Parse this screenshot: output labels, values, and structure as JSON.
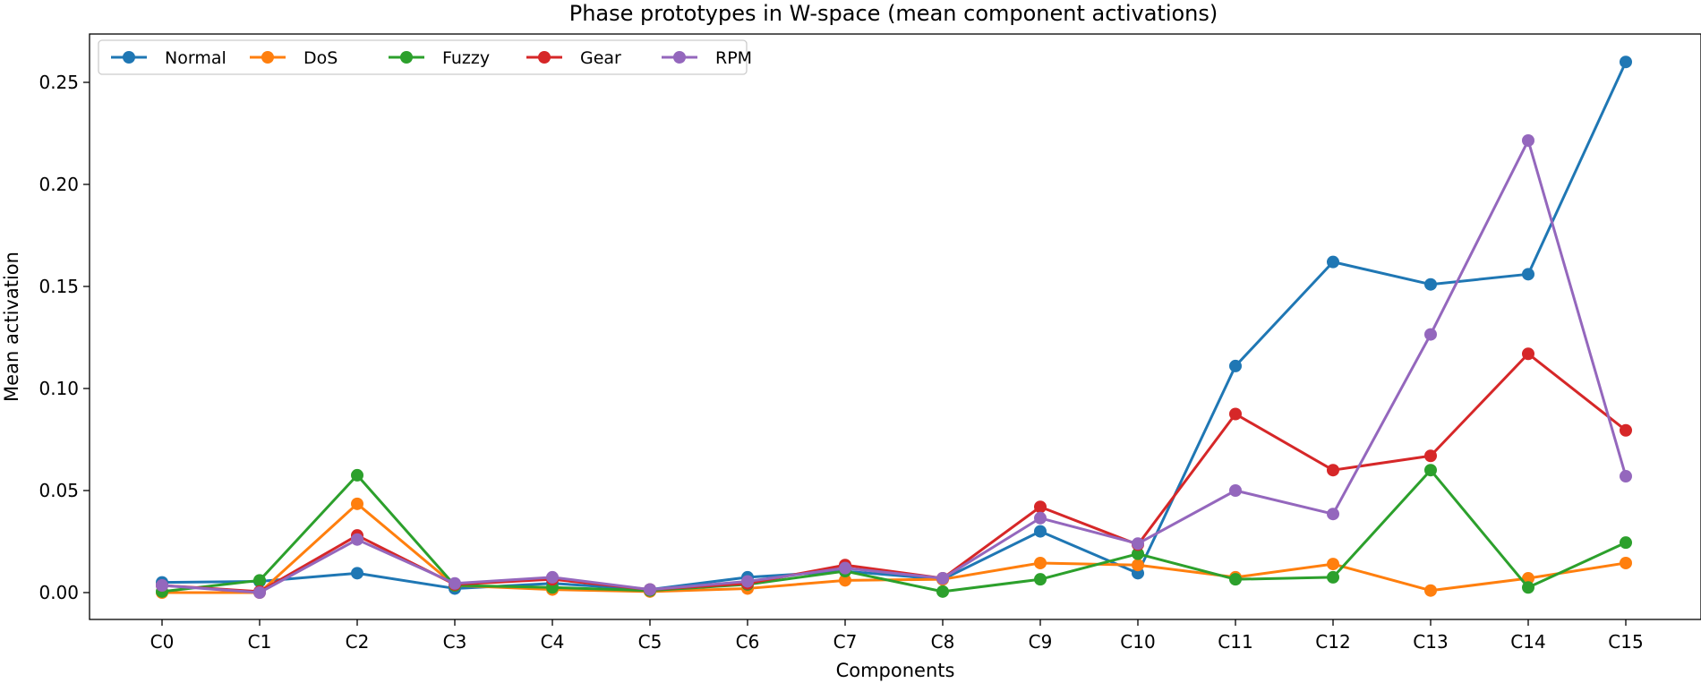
{
  "chart_data": {
    "type": "line",
    "title": "Phase prototypes in W-space (mean component activations)",
    "xlabel": "Components",
    "ylabel": "Mean activation",
    "categories": [
      "C0",
      "C1",
      "C2",
      "C3",
      "C4",
      "C5",
      "C6",
      "C7",
      "C8",
      "C9",
      "C10",
      "C11",
      "C12",
      "C13",
      "C14",
      "C15"
    ],
    "ylim": [
      -0.013,
      0.272
    ],
    "yticks": [
      0.0,
      0.05,
      0.1,
      0.15,
      0.2,
      0.25
    ],
    "ytick_labels": [
      "0.00",
      "0.05",
      "0.10",
      "0.15",
      "0.20",
      "0.25"
    ],
    "grid": false,
    "legend_position": "top-left",
    "series": [
      {
        "name": "Normal",
        "color": "#1f77b4",
        "values": [
          0.005,
          0.0055,
          0.0095,
          0.002,
          0.0045,
          0.0015,
          0.0075,
          0.0105,
          0.0065,
          0.03,
          0.0095,
          0.111,
          0.162,
          0.151,
          0.156,
          0.26
        ]
      },
      {
        "name": "DoS",
        "color": "#ff7f0e",
        "values": [
          0.0,
          0.0,
          0.0435,
          0.0035,
          0.0015,
          0.0005,
          0.002,
          0.006,
          0.0065,
          0.0145,
          0.0135,
          0.0075,
          0.014,
          0.001,
          0.007,
          0.0145
        ]
      },
      {
        "name": "Fuzzy",
        "color": "#2ca02c",
        "values": [
          0.0005,
          0.006,
          0.0575,
          0.0035,
          0.0025,
          0.001,
          0.004,
          0.0105,
          0.0005,
          0.0065,
          0.019,
          0.0065,
          0.0075,
          0.06,
          0.0025,
          0.0245
        ]
      },
      {
        "name": "Gear",
        "color": "#d62728",
        "values": [
          0.0035,
          0.0005,
          0.028,
          0.004,
          0.0065,
          0.0015,
          0.0045,
          0.0135,
          0.007,
          0.042,
          0.0235,
          0.0875,
          0.06,
          0.067,
          0.117,
          0.0795
        ]
      },
      {
        "name": "RPM",
        "color": "#9467bd",
        "values": [
          0.0035,
          0.0,
          0.026,
          0.0045,
          0.0075,
          0.0015,
          0.0055,
          0.012,
          0.007,
          0.0365,
          0.024,
          0.05,
          0.0385,
          0.1265,
          0.2215,
          0.057
        ]
      }
    ]
  }
}
